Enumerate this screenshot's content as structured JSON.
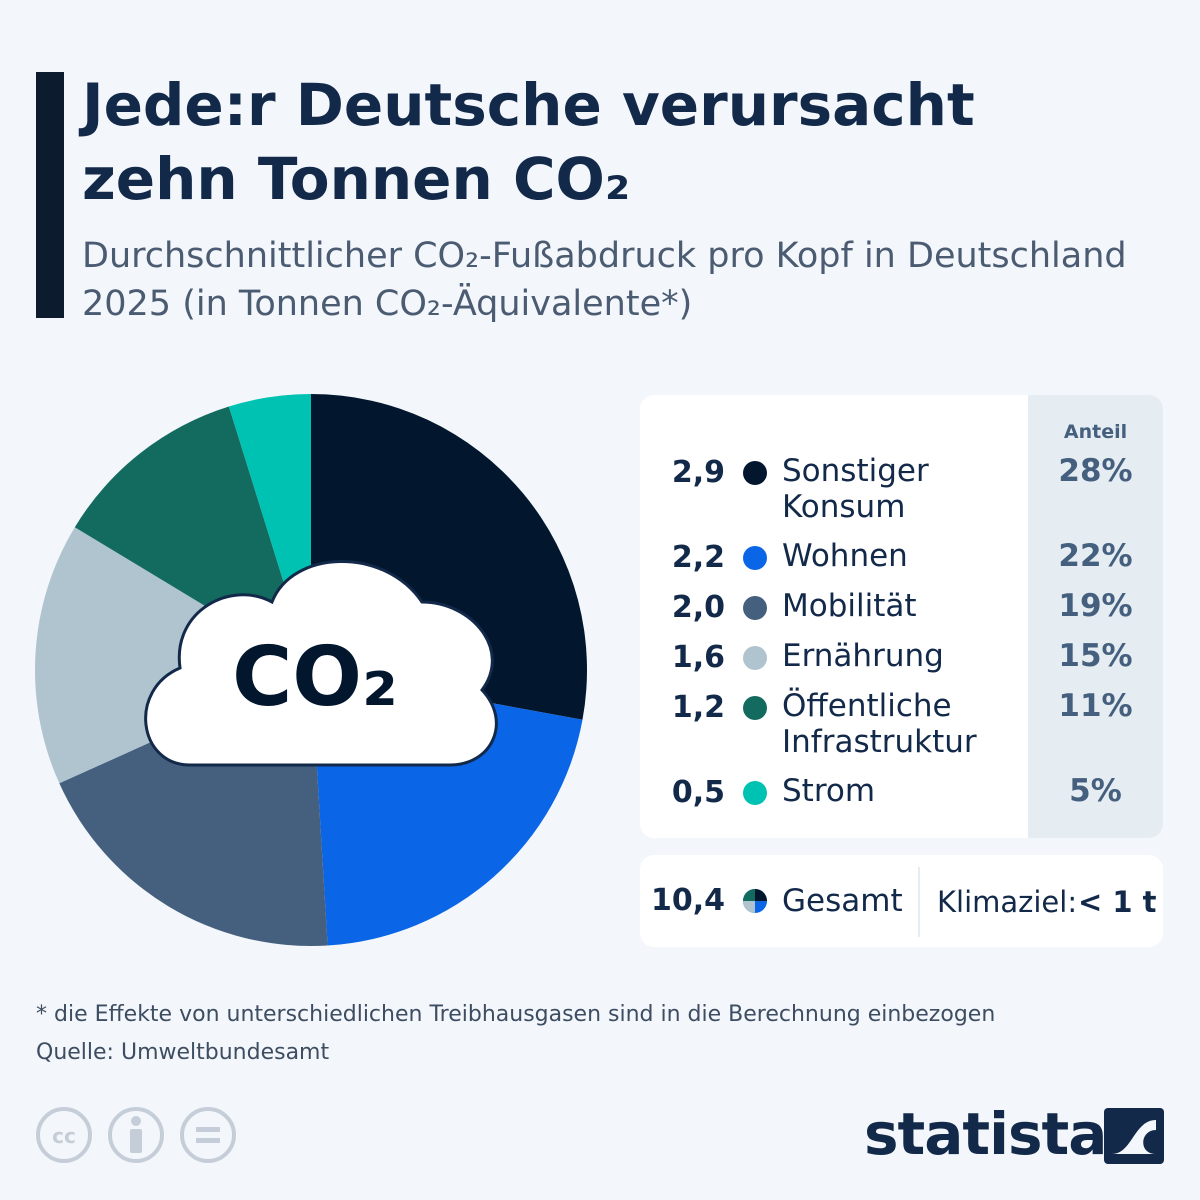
{
  "chart_data": {
    "type": "pie",
    "title": "Jede:r Deutsche verursacht zehn Tonnen CO₂",
    "subtitle": "Durchschnittlicher CO₂-Fußabdruck pro Kopf in Deutschland 2025 (in Tonnen CO₂-Äquivalente*)",
    "center_label": "CO₂",
    "categories": [
      "Sonstiger Konsum",
      "Wohnen",
      "Mobilität",
      "Ernährung",
      "Öffentliche Infrastruktur",
      "Strom"
    ],
    "values": [
      2.9,
      2.2,
      2.0,
      1.6,
      1.2,
      0.5
    ],
    "value_labels": [
      "2,9",
      "2,2",
      "2,0",
      "1,6",
      "1,2",
      "0,5"
    ],
    "colors": [
      "#02162e",
      "#0a66e6",
      "#45607e",
      "#afc4cf",
      "#136b5f",
      "#00c2b2"
    ],
    "share_header": "Anteil",
    "shares": [
      28,
      22,
      19,
      15,
      11,
      5
    ],
    "share_labels": [
      "28%",
      "22%",
      "19%",
      "15%",
      "11%",
      "5%"
    ],
    "total": 10.4,
    "total_label": "10,4",
    "total_name": "Gesamt",
    "goal_name": "Klimaziel:",
    "goal_value": "< 1 t",
    "note": "* die Effekte von unterschiedlichen Treibhausgasen sind in die Berechnung einbezogen",
    "source": "Quelle: Umweltbundesamt",
    "brand": "statista"
  }
}
